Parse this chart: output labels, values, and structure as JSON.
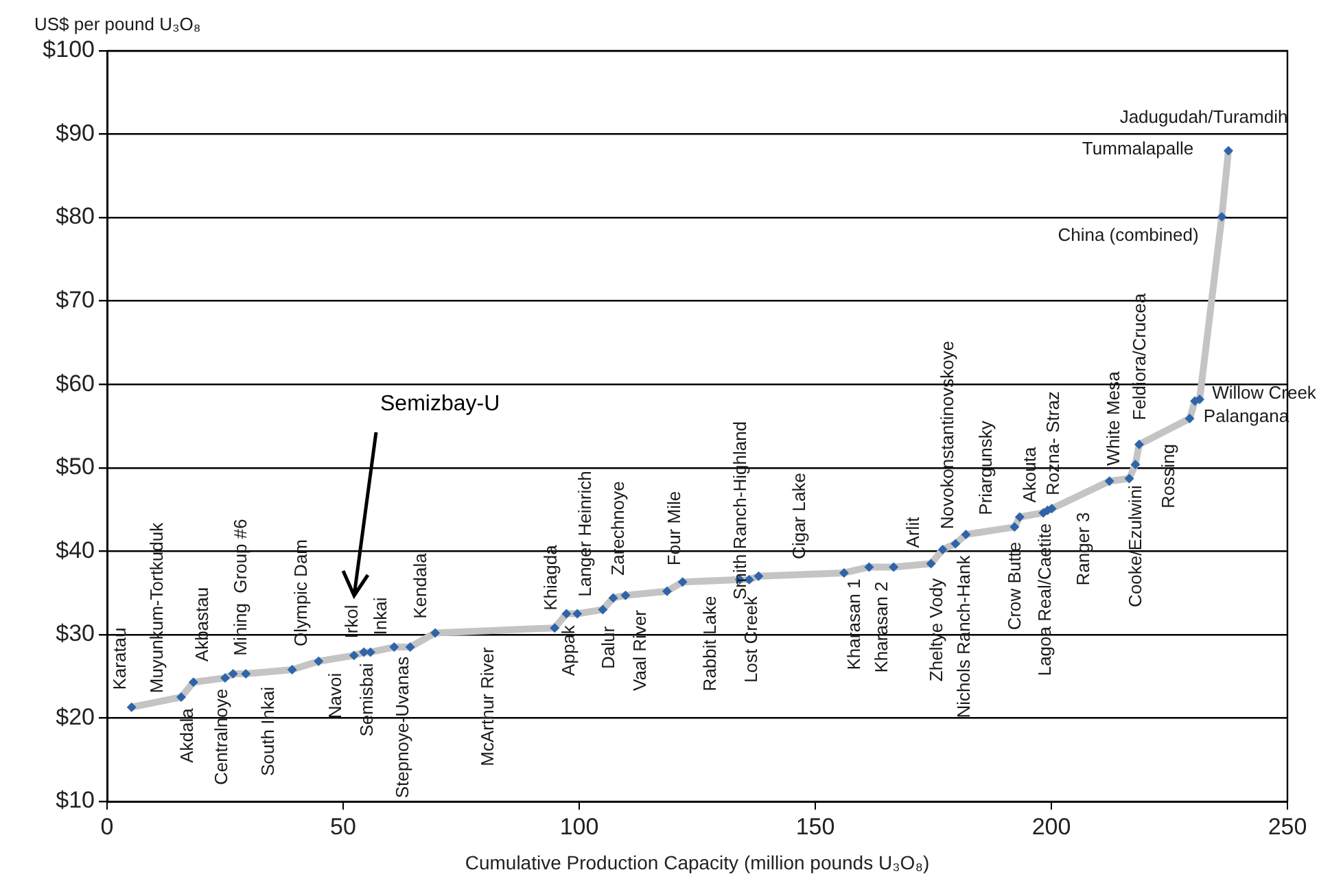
{
  "chart_data": {
    "type": "line",
    "ylabel": "US$ per pound U₃O₈",
    "xlabel": "Cumulative Production Capacity (million pounds U₃O₈)",
    "xlim": [
      0,
      250
    ],
    "xticks": [
      0,
      50,
      100,
      150,
      200,
      250
    ],
    "ylim": [
      10,
      100
    ],
    "yticks": [
      {
        "value": 10,
        "label": "$10"
      },
      {
        "value": 20,
        "label": "$20"
      },
      {
        "value": 30,
        "label": "$30"
      },
      {
        "value": 40,
        "label": "$40"
      },
      {
        "value": 50,
        "label": "$50"
      },
      {
        "value": 60,
        "label": "$60"
      },
      {
        "value": 70,
        "label": "$70"
      },
      {
        "value": 80,
        "label": "$80"
      },
      {
        "value": 90,
        "label": "$90"
      },
      {
        "value": 100,
        "label": "$100"
      }
    ],
    "grid": "y",
    "legend": false,
    "marker": "diamond",
    "line_style": "solid",
    "x": [
      5.2,
      15.7,
      18.3,
      25.0,
      26.7,
      29.4,
      39.2,
      44.8,
      52.3,
      54.4,
      55.8,
      60.8,
      64.2,
      69.5,
      94.8,
      97.3,
      99.6,
      105.0,
      107.2,
      109.8,
      118.6,
      121.9,
      134.0,
      136.0,
      138.0,
      156.1,
      161.4,
      166.6,
      174.5,
      177.0,
      179.7,
      181.9,
      192.2,
      193.3,
      198.3,
      199.2,
      200.1,
      212.3,
      216.5,
      217.8,
      218.6,
      229.3,
      230.4,
      231.4,
      236.1,
      237.5
    ],
    "series": [
      {
        "color": "#c4c4c4",
        "values": [
          21.3,
          22.5,
          24.3,
          24.8,
          25.3,
          25.3,
          25.8,
          26.8,
          27.5,
          27.9,
          27.9,
          28.5,
          28.5,
          30.2,
          30.8,
          32.5,
          32.5,
          33.0,
          34.4,
          34.7,
          35.2,
          36.3,
          36.6,
          36.6,
          37.0,
          37.4,
          38.1,
          38.1,
          38.5,
          40.2,
          40.9,
          42.0,
          42.9,
          44.1,
          44.6,
          44.9,
          45.1,
          48.4,
          48.7,
          50.4,
          52.8,
          55.9,
          58.0,
          58.2,
          80.1,
          88.0
        ]
      }
    ],
    "annotations": [
      "Karatau",
      "Muyunkum-Tortkuduk",
      "Akdala",
      "Akbastau",
      "Centralnoye",
      "Mining  Group #6",
      "South Inkai",
      "Olympic Dam",
      "Navoi",
      "Irkol",
      "Semisbai",
      "Inkai",
      "Stepnoye-Uvanas",
      "Kendala",
      "McArthur River",
      "Khiagda",
      "Appak",
      "Langer Heinrich",
      "Dalur",
      "Zarechnoye",
      "Vaal River",
      "Four Mile",
      "Rabbit Lake",
      "Smith Ranch-Highland",
      "Lost Creek",
      "Cigar Lake",
      "Kharasan 1",
      "Kharasan 2",
      "Arlit",
      "Zheltye Vody",
      "Novokonstantinovskoye",
      "Nichols Ranch-Hank",
      "Priargunsky",
      "Crow Butte",
      "Akouta",
      "Lagoa Real/Caetite",
      "Rozna- Straz",
      "Ranger 3",
      "White Mesa",
      "Cooke/Ezulwini",
      "Feldiora/Crucea",
      "Rossing",
      "Willow Creek",
      "Palangana",
      "China (combined)",
      "Tummalapalle",
      "Jadugudah/Turamdih",
      "Semizbay-U"
    ]
  }
}
